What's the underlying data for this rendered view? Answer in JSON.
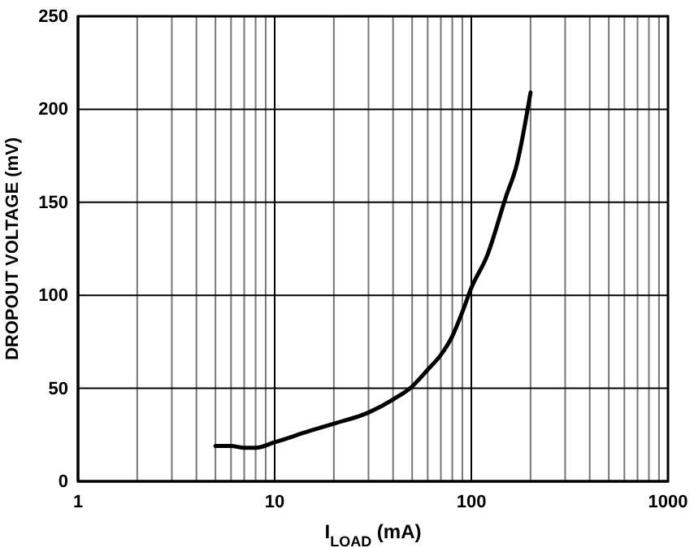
{
  "chart_data": {
    "type": "line",
    "xlabel": "I$_{LOAD}$ (mA)",
    "ylabel": "DROPOUT VOLTAGE (mV)",
    "log": "x",
    "grid": true,
    "line_style": "solid",
    "marker": "none",
    "xlim": [
      1,
      1000
    ],
    "ylim": [
      0,
      250
    ],
    "xticks": [
      1,
      {
        "value": 2,
        "label": null
      },
      {
        "value": 3,
        "label": null
      },
      {
        "value": 4,
        "label": null
      },
      {
        "value": 5,
        "label": null
      },
      {
        "value": 6,
        "label": null
      },
      {
        "value": 7,
        "label": null
      },
      {
        "value": 8,
        "label": null
      },
      {
        "value": 9,
        "label": null
      },
      10,
      {
        "value": 20,
        "label": null
      },
      {
        "value": 30,
        "label": null
      },
      {
        "value": 40,
        "label": null
      },
      {
        "value": 50,
        "label": null
      },
      {
        "value": 60,
        "label": null
      },
      {
        "value": 70,
        "label": null
      },
      {
        "value": 80,
        "label": null
      },
      {
        "value": 90,
        "label": null
      },
      100,
      {
        "value": 200,
        "label": null
      },
      {
        "value": 300,
        "label": null
      },
      {
        "value": 400,
        "label": null
      },
      {
        "value": 500,
        "label": null
      },
      {
        "value": 600,
        "label": null
      },
      {
        "value": 700,
        "label": null
      },
      {
        "value": 800,
        "label": null
      },
      {
        "value": 900,
        "label": null
      },
      1000
    ],
    "yticks": [
      0,
      50,
      100,
      150,
      200,
      250
    ],
    "series": [
      {
        "color": "#000000",
        "x": [
          5,
          6,
          7,
          8,
          10,
          15,
          20,
          30,
          40,
          50,
          60,
          70,
          80,
          90,
          100,
          120,
          150,
          170,
          200
        ],
        "values": [
          19,
          19,
          18,
          18,
          21,
          27,
          31,
          37,
          44,
          51,
          60,
          68,
          78,
          91,
          104,
          121,
          153,
          170,
          209
        ]
      }
    ]
  }
}
